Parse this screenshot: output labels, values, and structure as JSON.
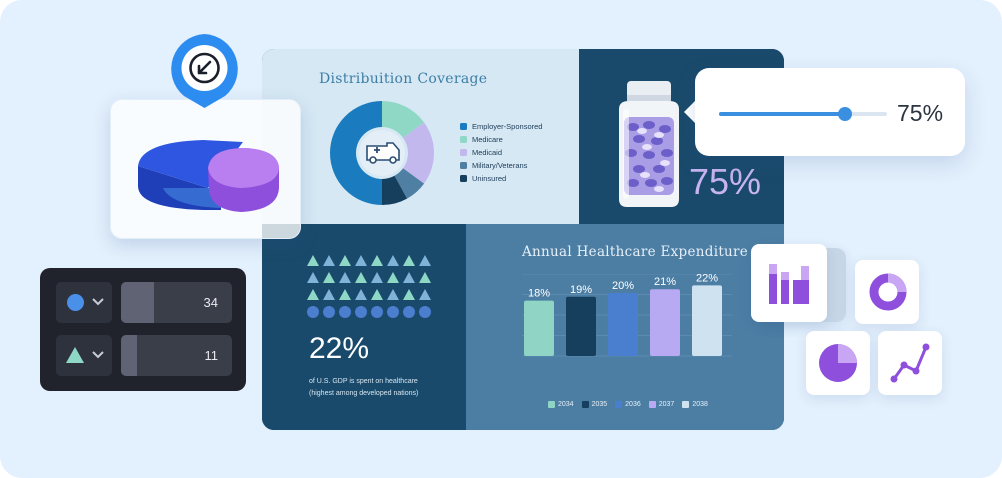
{
  "pie_widget": {
    "icon": "arrow-down-left-icon"
  },
  "coverage": {
    "title": "Distribuition Coverage",
    "center_icon": "ambulance-icon",
    "legend": [
      {
        "label": "Employer-Sponsored",
        "color": "#1b7bbf"
      },
      {
        "label": "Medicare",
        "color": "#8fd8c6"
      },
      {
        "label": "Medicaid",
        "color": "#c3b8ee"
      },
      {
        "label": "Military/Veterans",
        "color": "#4f7fa2"
      },
      {
        "label": "Uninsured",
        "color": "#163f5d"
      }
    ],
    "slices": [
      {
        "label": "Employer-Sponsored",
        "value": 50
      },
      {
        "label": "Medicare",
        "value": 15
      },
      {
        "label": "Medicaid",
        "value": 20
      },
      {
        "label": "Military/Veterans",
        "value": 7
      },
      {
        "label": "Uninsured",
        "value": 8
      }
    ]
  },
  "pill_panel": {
    "percent_label": "75%",
    "icon": "pill-bottle-icon"
  },
  "slider": {
    "value": 75,
    "value_label": "75%"
  },
  "gdp": {
    "big": "22%",
    "caption_line1": "of U.S. GDP is spent on healthcare",
    "caption_line2": "(highest among developed nations)"
  },
  "chart_data": {
    "type": "bar",
    "title": "Annual Healthcare Expenditure",
    "categories": [
      "2034",
      "2035",
      "2036",
      "2037",
      "2038"
    ],
    "values": [
      18,
      19,
      20,
      21,
      22
    ],
    "value_labels": [
      "18%",
      "19%",
      "20%",
      "21%",
      "22%"
    ],
    "colors": [
      "#8fd4c4",
      "#163f5d",
      "#4a7fd0",
      "#b7a9f2",
      "#cfe2f0"
    ],
    "ylim": [
      0,
      25
    ],
    "grid": true,
    "legend": "bottom"
  },
  "selector_panel": {
    "rows": [
      {
        "icon": "circle-icon",
        "value": 34,
        "value_label": "34",
        "fill_percent": 30
      },
      {
        "icon": "triangle-icon",
        "value": 11,
        "value_label": "11",
        "fill_percent": 14
      }
    ]
  },
  "tiles": [
    {
      "icon": "bar-chart-icon"
    },
    {
      "icon": "donut-chart-icon"
    },
    {
      "icon": "pie-chart-icon"
    },
    {
      "icon": "line-chart-icon"
    }
  ]
}
